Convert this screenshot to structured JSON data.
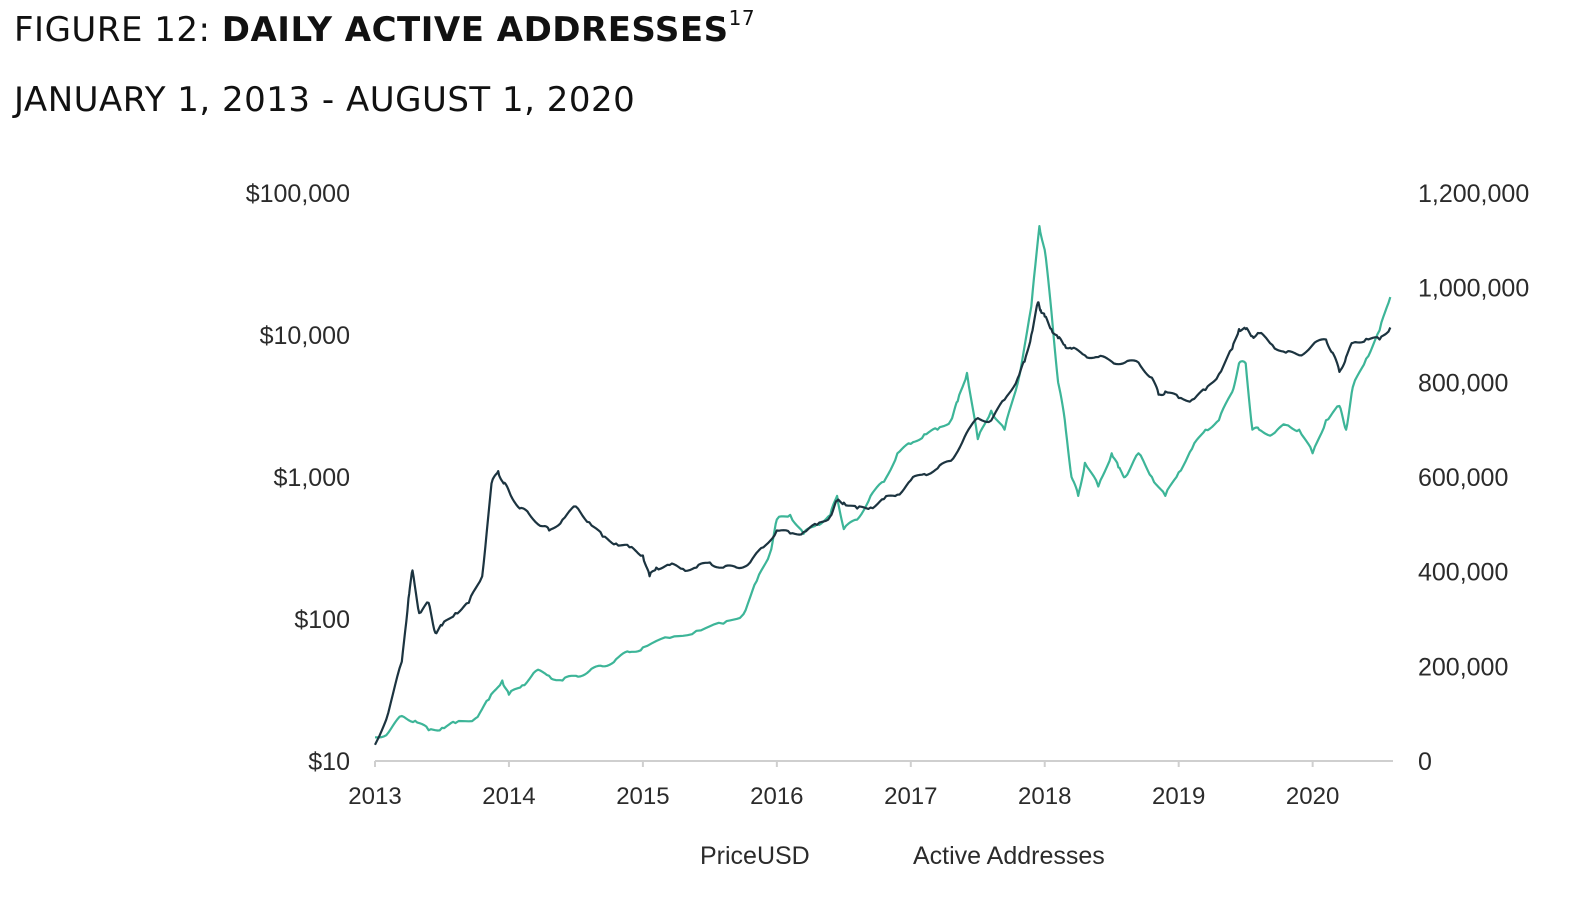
{
  "figure": {
    "prefix": "FIGURE 12: ",
    "title": "DAILY ACTIVE ADDRESSES",
    "footnote": "17",
    "subtitle": "JANUARY 1, 2013 - AUGUST 1, 2020"
  },
  "colors": {
    "price": "#1c3440",
    "active": "#3db598",
    "axis": "#cfcfcf",
    "text": "#2b2b2b"
  },
  "chart_data": {
    "type": "line",
    "title": "DAILY ACTIVE ADDRESSES",
    "subtitle": "JANUARY 1, 2013 - AUGUST 1, 2020",
    "x_ticks": [
      "2013",
      "2014",
      "2015",
      "2016",
      "2017",
      "2018",
      "2019",
      "2020"
    ],
    "xlim": [
      2013.0,
      2020.6
    ],
    "y_left": {
      "scale": "log",
      "ylim": [
        10,
        100000
      ],
      "ticks": [
        10,
        100,
        1000,
        10000,
        100000
      ],
      "tick_labels": [
        "$10",
        "$100",
        "$1,000",
        "$10,000",
        "$100,000"
      ]
    },
    "y_right": {
      "scale": "linear",
      "ylim": [
        0,
        1200000
      ],
      "ticks": [
        0,
        200000,
        400000,
        600000,
        800000,
        1000000,
        1200000
      ],
      "tick_labels": [
        "0",
        "200,000",
        "400,000",
        "600,000",
        "800,000",
        "1,000,000",
        "1,200,000"
      ]
    },
    "legend": [
      "PriceUSD",
      "Active Addresses"
    ],
    "series": [
      {
        "name": "PriceUSD",
        "axis": "left",
        "x": [
          2013.0,
          2013.1,
          2013.2,
          2013.25,
          2013.28,
          2013.33,
          2013.4,
          2013.45,
          2013.5,
          2013.6,
          2013.7,
          2013.8,
          2013.87,
          2013.92,
          2013.96,
          2014.0,
          2014.08,
          2014.15,
          2014.25,
          2014.3,
          2014.4,
          2014.5,
          2014.6,
          2014.7,
          2014.8,
          2014.9,
          2015.0,
          2015.05,
          2015.1,
          2015.2,
          2015.3,
          2015.4,
          2015.5,
          2015.6,
          2015.7,
          2015.8,
          2015.9,
          2016.0,
          2016.1,
          2016.2,
          2016.3,
          2016.4,
          2016.45,
          2016.5,
          2016.6,
          2016.7,
          2016.8,
          2016.9,
          2017.0,
          2017.1,
          2017.2,
          2017.3,
          2017.4,
          2017.5,
          2017.6,
          2017.7,
          2017.8,
          2017.85,
          2017.9,
          2017.95,
          2017.97,
          2018.0,
          2018.05,
          2018.1,
          2018.15,
          2018.2,
          2018.3,
          2018.4,
          2018.5,
          2018.6,
          2018.7,
          2018.8,
          2018.85,
          2018.9,
          2019.0,
          2019.1,
          2019.2,
          2019.3,
          2019.4,
          2019.45,
          2019.5,
          2019.55,
          2019.6,
          2019.7,
          2019.8,
          2019.9,
          2020.0,
          2020.1,
          2020.15,
          2020.2,
          2020.25,
          2020.3,
          2020.4,
          2020.5,
          2020.58
        ],
        "values": [
          13,
          22,
          50,
          140,
          220,
          110,
          130,
          80,
          90,
          110,
          130,
          200,
          900,
          1100,
          900,
          800,
          600,
          550,
          450,
          420,
          500,
          620,
          480,
          380,
          340,
          320,
          280,
          200,
          230,
          240,
          225,
          230,
          250,
          230,
          230,
          250,
          320,
          420,
          400,
          410,
          460,
          530,
          680,
          660,
          600,
          610,
          700,
          750,
          950,
          1050,
          1150,
          1300,
          1900,
          2600,
          2500,
          3500,
          5000,
          6500,
          10000,
          17000,
          15000,
          13500,
          11000,
          9500,
          8500,
          8000,
          7200,
          7000,
          6500,
          6400,
          6400,
          5000,
          3800,
          4000,
          3600,
          3500,
          4100,
          5300,
          8000,
          11000,
          11000,
          9800,
          10300,
          8500,
          7500,
          7200,
          8500,
          9300,
          7500,
          5500,
          7000,
          8800,
          9400,
          9300,
          11300
        ]
      },
      {
        "name": "Active Addresses",
        "axis": "right",
        "x": [
          2013.0,
          2013.1,
          2013.2,
          2013.3,
          2013.4,
          2013.5,
          2013.6,
          2013.75,
          2013.85,
          2013.95,
          2014.0,
          2014.1,
          2014.2,
          2014.3,
          2014.4,
          2014.5,
          2014.6,
          2014.7,
          2014.8,
          2014.9,
          2015.0,
          2015.2,
          2015.4,
          2015.6,
          2015.75,
          2015.85,
          2015.95,
          2016.0,
          2016.1,
          2016.2,
          2016.3,
          2016.4,
          2016.45,
          2016.5,
          2016.6,
          2016.7,
          2016.8,
          2016.9,
          2017.0,
          2017.1,
          2017.2,
          2017.3,
          2017.35,
          2017.42,
          2017.5,
          2017.6,
          2017.7,
          2017.8,
          2017.9,
          2017.96,
          2018.0,
          2018.05,
          2018.1,
          2018.15,
          2018.2,
          2018.25,
          2018.3,
          2018.4,
          2018.5,
          2018.55,
          2018.6,
          2018.7,
          2018.8,
          2018.9,
          2019.0,
          2019.1,
          2019.2,
          2019.3,
          2019.4,
          2019.45,
          2019.5,
          2019.55,
          2019.6,
          2019.7,
          2019.8,
          2019.9,
          2020.0,
          2020.1,
          2020.2,
          2020.25,
          2020.3,
          2020.4,
          2020.5,
          2020.58
        ],
        "values": [
          50000,
          60000,
          95000,
          85000,
          65000,
          70000,
          80000,
          90000,
          130000,
          170000,
          140000,
          160000,
          190000,
          180000,
          170000,
          180000,
          190000,
          200000,
          215000,
          230000,
          240000,
          260000,
          275000,
          290000,
          310000,
          380000,
          440000,
          510000,
          520000,
          480000,
          500000,
          520000,
          560000,
          490000,
          510000,
          560000,
          590000,
          650000,
          670000,
          690000,
          700000,
          720000,
          760000,
          820000,
          680000,
          740000,
          700000,
          800000,
          960000,
          1130000,
          1080000,
          950000,
          800000,
          720000,
          600000,
          560000,
          630000,
          580000,
          650000,
          620000,
          600000,
          650000,
          600000,
          560000,
          610000,
          660000,
          700000,
          720000,
          780000,
          840000,
          840000,
          700000,
          700000,
          690000,
          710000,
          700000,
          650000,
          720000,
          750000,
          700000,
          790000,
          850000,
          910000,
          980000
        ]
      }
    ]
  }
}
